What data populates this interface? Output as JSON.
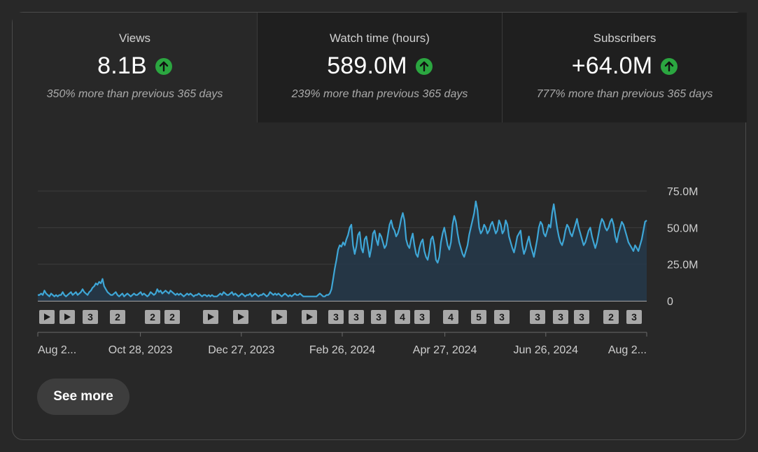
{
  "metrics": [
    {
      "label": "Views",
      "value": "8.1B",
      "change": "350% more than previous 365 days",
      "trend_icon": "arrow-up-circle-icon",
      "active": true
    },
    {
      "label": "Watch time (hours)",
      "value": "589.0M",
      "change": "239% more than previous 365 days",
      "trend_icon": "arrow-up-circle-icon",
      "active": false
    },
    {
      "label": "Subscribers",
      "value": "+64.0M",
      "change": "777% more than previous 365 days",
      "trend_icon": "arrow-up-circle-icon",
      "active": false
    }
  ],
  "colors": {
    "line": "#3ea6d6",
    "fill": "#24384a",
    "up": "#2ba640",
    "marker_bg": "#a8a8a8"
  },
  "chart_data": {
    "type": "area",
    "title": "Views",
    "y_ticks": [
      "75.0M",
      "50.0M",
      "25.0M",
      "0"
    ],
    "y_tick_values": [
      75,
      50,
      25,
      0
    ],
    "ylim": [
      0,
      75
    ],
    "y_unit": "M",
    "x_tick_labels": [
      "Aug 2...",
      "Oct 28, 2023",
      "Dec 27, 2023",
      "Feb 26, 2024",
      "Apr 27, 2024",
      "Jun 26, 2024",
      "Aug 2..."
    ],
    "x_tick_days": [
      0,
      61,
      121,
      181,
      242,
      302,
      362
    ],
    "x_range_days": [
      0,
      362
    ],
    "values": [
      4,
      4,
      5,
      4,
      7,
      5,
      4,
      3,
      5,
      4,
      3,
      4,
      3,
      4,
      4,
      6,
      4,
      3,
      4,
      5,
      6,
      4,
      5,
      6,
      4,
      5,
      6,
      8,
      6,
      5,
      4,
      6,
      7,
      9,
      10,
      12,
      11,
      13,
      12,
      15,
      10,
      8,
      6,
      5,
      4,
      4,
      5,
      6,
      4,
      3,
      4,
      5,
      3,
      4,
      5,
      4,
      3,
      4,
      5,
      4,
      4,
      5,
      6,
      4,
      5,
      4,
      3,
      4,
      6,
      5,
      4,
      5,
      8,
      6,
      7,
      5,
      6,
      7,
      6,
      5,
      7,
      6,
      5,
      4,
      5,
      4,
      5,
      4,
      3,
      4,
      5,
      4,
      5,
      4,
      3,
      4,
      4,
      5,
      4,
      3,
      4,
      4,
      3,
      4,
      3,
      4,
      3,
      3,
      3,
      4,
      5,
      4,
      6,
      5,
      4,
      4,
      5,
      6,
      4,
      5,
      4,
      3,
      4,
      5,
      4,
      3,
      4,
      4,
      5,
      3,
      4,
      5,
      4,
      3,
      4,
      4,
      5,
      4,
      3,
      4,
      6,
      5,
      4,
      5,
      4,
      5,
      4,
      3,
      4,
      5,
      4,
      3,
      4,
      3,
      4,
      5,
      4,
      4,
      5,
      4,
      3,
      3,
      3,
      3,
      3,
      3,
      3,
      3,
      3,
      4,
      5,
      4,
      3,
      3,
      4,
      4,
      5,
      8,
      15,
      22,
      28,
      35,
      38,
      37,
      40,
      38,
      42,
      45,
      50,
      52,
      38,
      32,
      37,
      45,
      47,
      36,
      33,
      42,
      44,
      37,
      30,
      36,
      46,
      48,
      42,
      38,
      46,
      44,
      40,
      36,
      38,
      45,
      52,
      55,
      50,
      48,
      44,
      46,
      50,
      56,
      60,
      55,
      42,
      38,
      36,
      42,
      46,
      38,
      32,
      30,
      36,
      40,
      42,
      34,
      30,
      28,
      34,
      42,
      44,
      38,
      28,
      26,
      30,
      40,
      46,
      50,
      44,
      38,
      35,
      40,
      52,
      58,
      54,
      46,
      40,
      36,
      32,
      30,
      34,
      38,
      45,
      50,
      55,
      60,
      68,
      62,
      50,
      46,
      48,
      52,
      50,
      46,
      48,
      52,
      54,
      50,
      46,
      48,
      55,
      52,
      46,
      48,
      55,
      52,
      44,
      40,
      36,
      33,
      38,
      44,
      46,
      48,
      38,
      32,
      35,
      40,
      44,
      38,
      34,
      30,
      36,
      42,
      50,
      54,
      52,
      46,
      44,
      48,
      52,
      50,
      60,
      66,
      58,
      50,
      44,
      40,
      38,
      42,
      48,
      52,
      50,
      46,
      44,
      48,
      52,
      56,
      50,
      46,
      42,
      38,
      40,
      44,
      48,
      50,
      44,
      40,
      36,
      40,
      46,
      52,
      56,
      54,
      50,
      48,
      50,
      54,
      56,
      52,
      44,
      40,
      46,
      50,
      54,
      52,
      48,
      44,
      40,
      38,
      36,
      34,
      38,
      36,
      34,
      38,
      42,
      48,
      54,
      55
    ]
  },
  "timeline_markers": [
    {
      "type": "play",
      "label": ""
    },
    {
      "type": "play",
      "label": ""
    },
    {
      "type": "count",
      "label": "3"
    },
    {
      "type": "count",
      "label": "2"
    },
    {
      "type": "count",
      "label": "2"
    },
    {
      "type": "count",
      "label": "2"
    },
    {
      "type": "play",
      "label": ""
    },
    {
      "type": "play",
      "label": ""
    },
    {
      "type": "play",
      "label": ""
    },
    {
      "type": "play",
      "label": ""
    },
    {
      "type": "count",
      "label": "3"
    },
    {
      "type": "count",
      "label": "3"
    },
    {
      "type": "count",
      "label": "3"
    },
    {
      "type": "count",
      "label": "4"
    },
    {
      "type": "count",
      "label": "3"
    },
    {
      "type": "count",
      "label": "4"
    },
    {
      "type": "count",
      "label": "5"
    },
    {
      "type": "count",
      "label": "3"
    },
    {
      "type": "count",
      "label": "3"
    },
    {
      "type": "count",
      "label": "3"
    },
    {
      "type": "count",
      "label": "3"
    },
    {
      "type": "count",
      "label": "2"
    },
    {
      "type": "count",
      "label": "3"
    }
  ],
  "see_more_label": "See more"
}
